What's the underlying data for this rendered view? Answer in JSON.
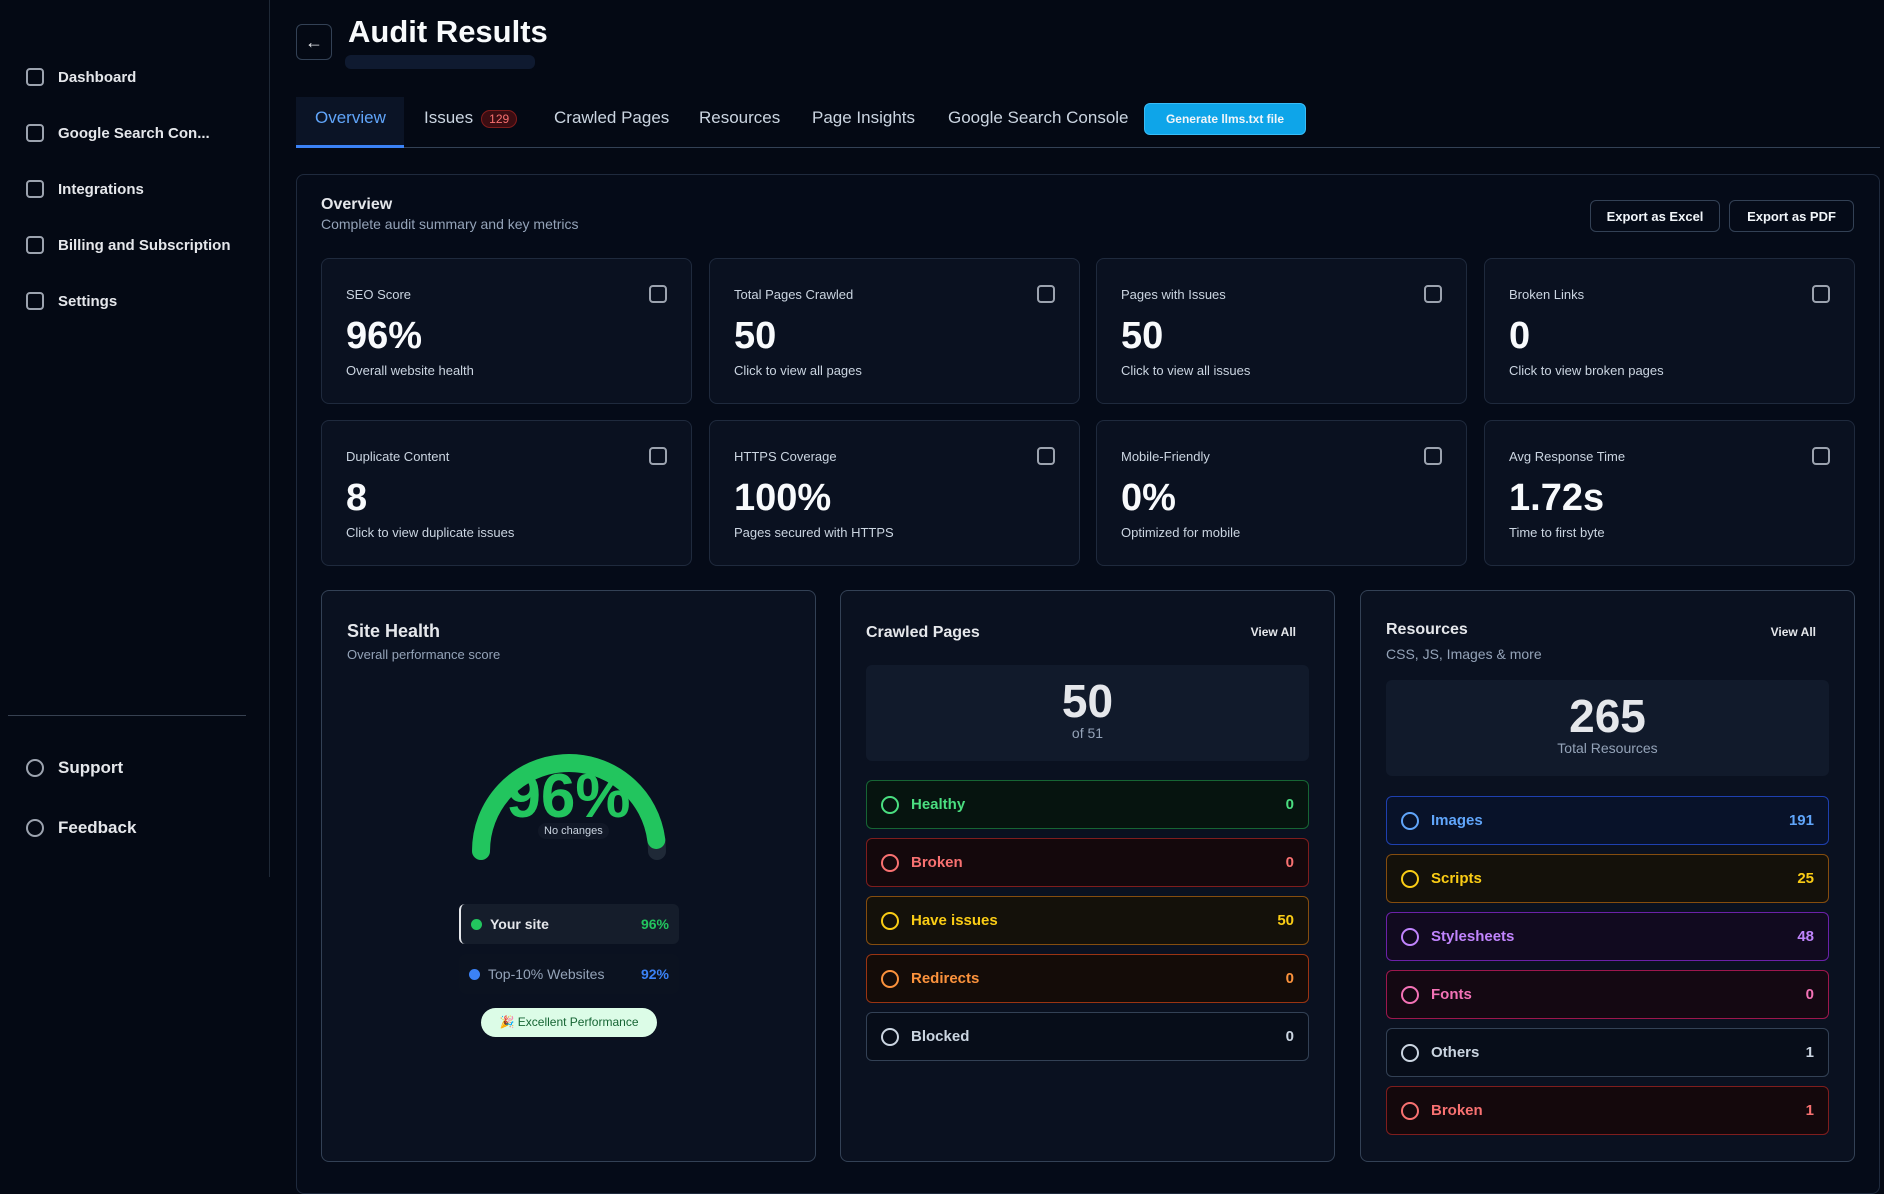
{
  "sidebar": {
    "nav": [
      "Dashboard",
      "Google Search Con...",
      "Integrations",
      "Billing and Subscription",
      "Settings"
    ],
    "footer": [
      "Support",
      "Feedback"
    ]
  },
  "header": {
    "title": "Audit Results"
  },
  "tabs": [
    {
      "label": "Overview"
    },
    {
      "label": "Issues",
      "badge": "129"
    },
    {
      "label": "Crawled Pages"
    },
    {
      "label": "Resources"
    },
    {
      "label": "Page Insights"
    },
    {
      "label": "Google Search Console"
    }
  ],
  "action_button": "Generate llms.txt file",
  "overview": {
    "title": "Overview",
    "subtitle": "Complete audit summary and key metrics",
    "exports": [
      "Export as Excel",
      "Export as PDF"
    ]
  },
  "metrics": [
    {
      "label": "SEO Score",
      "value": "96%",
      "note": "Overall website health"
    },
    {
      "label": "Total Pages Crawled",
      "value": "50",
      "note": "Click to view all pages"
    },
    {
      "label": "Pages with Issues",
      "value": "50",
      "note": "Click to view all issues"
    },
    {
      "label": "Broken Links",
      "value": "0",
      "note": "Click to view broken pages"
    },
    {
      "label": "Duplicate Content",
      "value": "8",
      "note": "Click to view duplicate issues"
    },
    {
      "label": "HTTPS Coverage",
      "value": "100%",
      "note": "Pages secured with HTTPS"
    },
    {
      "label": "Mobile-Friendly",
      "value": "0%",
      "note": "Optimized for mobile"
    },
    {
      "label": "Avg Response Time",
      "value": "1.72s",
      "note": "Time to first byte"
    }
  ],
  "site_health": {
    "title": "Site Health",
    "subtitle": "Overall performance score",
    "score": "96%",
    "change": "No changes",
    "comparison": [
      {
        "name": "Your site",
        "value": "96%"
      },
      {
        "name": "Top-10% Websites",
        "value": "92%"
      }
    ],
    "badge": "🎉 Excellent Performance"
  },
  "crawled_pages": {
    "title": "Crawled Pages",
    "view_all": "View All",
    "total": "50",
    "of": "of 51",
    "rows": [
      {
        "label": "Healthy",
        "count": "0"
      },
      {
        "label": "Broken",
        "count": "0"
      },
      {
        "label": "Have issues",
        "count": "50"
      },
      {
        "label": "Redirects",
        "count": "0"
      },
      {
        "label": "Blocked",
        "count": "0"
      }
    ]
  },
  "resources": {
    "title": "Resources",
    "subtitle": "CSS, JS, Images & more",
    "view_all": "View All",
    "total": "265",
    "total_label": "Total Resources",
    "rows": [
      {
        "label": "Images",
        "count": "191"
      },
      {
        "label": "Scripts",
        "count": "25"
      },
      {
        "label": "Stylesheets",
        "count": "48"
      },
      {
        "label": "Fonts",
        "count": "0"
      },
      {
        "label": "Others",
        "count": "1"
      },
      {
        "label": "Broken",
        "count": "1"
      }
    ]
  }
}
